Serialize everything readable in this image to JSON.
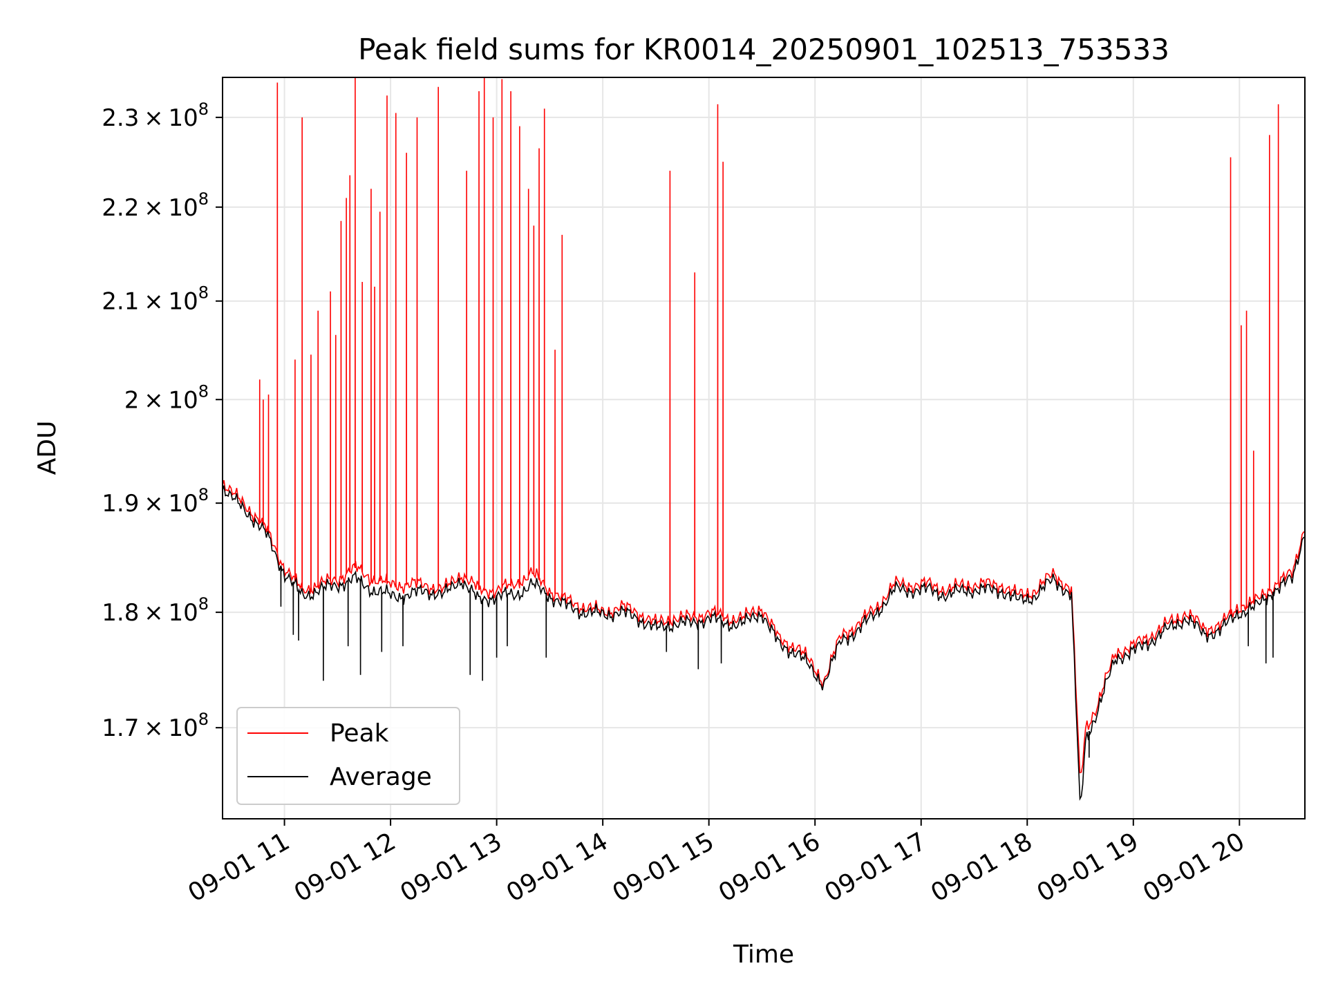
{
  "chart_data": {
    "type": "line",
    "title": "Peak field sums for KR0014_20250901_102513_753533",
    "xlabel": "Time",
    "ylabel": "ADU",
    "x_range": [
      "09-01 10:25",
      "09-01 20:37"
    ],
    "ylim": [
      162500000,
      234600000
    ],
    "y_scale": "log",
    "grid": true,
    "legend_position": "lower-left",
    "x_ticks": [
      {
        "label": "09-01 11",
        "value": "09-01 11:00"
      },
      {
        "label": "09-01 12",
        "value": "09-01 12:00"
      },
      {
        "label": "09-01 13",
        "value": "09-01 13:00"
      },
      {
        "label": "09-01 14",
        "value": "09-01 14:00"
      },
      {
        "label": "09-01 15",
        "value": "09-01 15:00"
      },
      {
        "label": "09-01 16",
        "value": "09-01 16:00"
      },
      {
        "label": "09-01 17",
        "value": "09-01 17:00"
      },
      {
        "label": "09-01 18",
        "value": "09-01 18:00"
      },
      {
        "label": "09-01 19",
        "value": "09-01 19:00"
      },
      {
        "label": "09-01 20",
        "value": "09-01 20:00"
      }
    ],
    "y_ticks": [
      {
        "mantissa": "1.7",
        "exponent": "8",
        "value": 170000000
      },
      {
        "mantissa": "1.8",
        "exponent": "8",
        "value": 180000000
      },
      {
        "mantissa": "1.9",
        "exponent": "8",
        "value": 190000000
      },
      {
        "mantissa": "2",
        "exponent": "8",
        "value": 200000000
      },
      {
        "mantissa": "2.1",
        "exponent": "8",
        "value": 210000000
      },
      {
        "mantissa": "2.2",
        "exponent": "8",
        "value": 220000000
      },
      {
        "mantissa": "2.3",
        "exponent": "8",
        "value": 230000000
      }
    ],
    "series": [
      {
        "name": "Peak",
        "color": "#ff0000",
        "baseline": [
          [
            "09-01 10:25",
            192000000
          ],
          [
            "09-01 10:30",
            191000000
          ],
          [
            "09-01 10:40",
            189500000
          ],
          [
            "09-01 10:50",
            187500000
          ],
          [
            "09-01 11:00",
            184000000
          ],
          [
            "09-01 11:10",
            182000000
          ],
          [
            "09-01 11:20",
            182500000
          ],
          [
            "09-01 11:30",
            183000000
          ],
          [
            "09-01 11:40",
            184000000
          ],
          [
            "09-01 11:50",
            183000000
          ],
          [
            "09-01 12:00",
            182500000
          ],
          [
            "09-01 12:10",
            182500000
          ],
          [
            "09-01 12:20",
            182500000
          ],
          [
            "09-01 12:30",
            182000000
          ],
          [
            "09-01 12:40",
            183500000
          ],
          [
            "09-01 12:50",
            182000000
          ],
          [
            "09-01 13:00",
            182000000
          ],
          [
            "09-01 13:10",
            182500000
          ],
          [
            "09-01 13:20",
            183500000
          ],
          [
            "09-01 13:30",
            182000000
          ],
          [
            "09-01 13:40",
            181000000
          ],
          [
            "09-01 13:50",
            180500000
          ],
          [
            "09-01 14:00",
            180000000
          ],
          [
            "09-01 14:10",
            180500000
          ],
          [
            "09-01 14:20",
            180000000
          ],
          [
            "09-01 14:30",
            179000000
          ],
          [
            "09-01 14:40",
            179500000
          ],
          [
            "09-01 14:50",
            179500000
          ],
          [
            "09-01 15:00",
            180000000
          ],
          [
            "09-01 15:10",
            179500000
          ],
          [
            "09-01 15:20",
            179500000
          ],
          [
            "09-01 15:30",
            180500000
          ],
          [
            "09-01 15:40",
            177500000
          ],
          [
            "09-01 15:50",
            177000000
          ],
          [
            "09-01 16:00",
            175000000
          ],
          [
            "09-01 16:05",
            174000000
          ],
          [
            "09-01 16:15",
            178000000
          ],
          [
            "09-01 16:25",
            179000000
          ],
          [
            "09-01 16:35",
            180500000
          ],
          [
            "09-01 16:45",
            182500000
          ],
          [
            "09-01 16:55",
            182500000
          ],
          [
            "09-01 17:05",
            182500000
          ],
          [
            "09-01 17:15",
            182000000
          ],
          [
            "09-01 17:25",
            182500000
          ],
          [
            "09-01 17:35",
            182500000
          ],
          [
            "09-01 17:45",
            182500000
          ],
          [
            "09-01 17:55",
            181500000
          ],
          [
            "09-01 18:05",
            182000000
          ],
          [
            "09-01 18:15",
            183500000
          ],
          [
            "09-01 18:25",
            182000000
          ],
          [
            "09-01 18:30",
            165000000
          ],
          [
            "09-01 18:33",
            170000000
          ],
          [
            "09-01 18:40",
            172000000
          ],
          [
            "09-01 18:50",
            176500000
          ],
          [
            "09-01 19:00",
            177000000
          ],
          [
            "09-01 19:10",
            178000000
          ],
          [
            "09-01 19:20",
            179000000
          ],
          [
            "09-01 19:30",
            180000000
          ],
          [
            "09-01 19:40",
            178500000
          ],
          [
            "09-01 19:50",
            179000000
          ],
          [
            "09-01 20:00",
            180500000
          ],
          [
            "09-01 20:10",
            181000000
          ],
          [
            "09-01 20:20",
            182500000
          ],
          [
            "09-01 20:30",
            183500000
          ],
          [
            "09-01 20:37",
            188000000
          ]
        ],
        "spikes": [
          [
            "09-01 10:46",
            202000000
          ],
          [
            "09-01 10:48",
            200000000
          ],
          [
            "09-01 10:51",
            200500000
          ],
          [
            "09-01 10:56",
            234000000
          ],
          [
            "09-01 11:06",
            204000000
          ],
          [
            "09-01 11:10",
            230000000
          ],
          [
            "09-01 11:15",
            204500000
          ],
          [
            "09-01 11:19",
            209000000
          ],
          [
            "09-01 11:26",
            211000000
          ],
          [
            "09-01 11:29",
            206500000
          ],
          [
            "09-01 11:32",
            218500000
          ],
          [
            "09-01 11:35",
            221000000
          ],
          [
            "09-01 11:37",
            223500000
          ],
          [
            "09-01 11:40",
            234600000
          ],
          [
            "09-01 11:44",
            212000000
          ],
          [
            "09-01 11:49",
            222000000
          ],
          [
            "09-01 11:51",
            211500000
          ],
          [
            "09-01 11:54",
            219500000
          ],
          [
            "09-01 11:58",
            232500000
          ],
          [
            "09-01 12:03",
            230500000
          ],
          [
            "09-01 12:09",
            226000000
          ],
          [
            "09-01 12:15",
            230000000
          ],
          [
            "09-01 12:27",
            233500000
          ],
          [
            "09-01 12:43",
            224000000
          ],
          [
            "09-01 12:50",
            233000000
          ],
          [
            "09-01 12:53",
            234600000
          ],
          [
            "09-01 12:58",
            230000000
          ],
          [
            "09-01 13:03",
            234400000
          ],
          [
            "09-01 13:08",
            233000000
          ],
          [
            "09-01 13:13",
            229000000
          ],
          [
            "09-01 13:18",
            222000000
          ],
          [
            "09-01 13:21",
            218000000
          ],
          [
            "09-01 13:24",
            226500000
          ],
          [
            "09-01 13:27",
            231000000
          ],
          [
            "09-01 13:33",
            205000000
          ],
          [
            "09-01 13:37",
            217000000
          ],
          [
            "09-01 14:38",
            224000000
          ],
          [
            "09-01 14:52",
            213000000
          ],
          [
            "09-01 15:05",
            231500000
          ],
          [
            "09-01 15:08",
            225000000
          ],
          [
            "09-01 19:55",
            225500000
          ],
          [
            "09-01 20:01",
            207500000
          ],
          [
            "09-01 20:04",
            209000000
          ],
          [
            "09-01 20:08",
            195000000
          ],
          [
            "09-01 20:17",
            228000000
          ],
          [
            "09-01 20:22",
            231500000
          ]
        ]
      },
      {
        "name": "Average",
        "color": "#000000",
        "baseline": [
          [
            "09-01 10:25",
            191500000
          ],
          [
            "09-01 10:30",
            190500000
          ],
          [
            "09-01 10:40",
            189000000
          ],
          [
            "09-01 10:50",
            187000000
          ],
          [
            "09-01 11:00",
            183500000
          ],
          [
            "09-01 11:10",
            181500000
          ],
          [
            "09-01 11:20",
            182000000
          ],
          [
            "09-01 11:30",
            182500000
          ],
          [
            "09-01 11:40",
            183000000
          ],
          [
            "09-01 11:50",
            182000000
          ],
          [
            "09-01 12:00",
            181500000
          ],
          [
            "09-01 12:10",
            181500000
          ],
          [
            "09-01 12:20",
            182000000
          ],
          [
            "09-01 12:30",
            181500000
          ],
          [
            "09-01 12:40",
            183000000
          ],
          [
            "09-01 12:50",
            181000000
          ],
          [
            "09-01 13:00",
            181500000
          ],
          [
            "09-01 13:10",
            181500000
          ],
          [
            "09-01 13:20",
            182500000
          ],
          [
            "09-01 13:30",
            181500000
          ],
          [
            "09-01 13:40",
            180500000
          ],
          [
            "09-01 13:50",
            180000000
          ],
          [
            "09-01 14:00",
            179800000
          ],
          [
            "09-01 14:10",
            180000000
          ],
          [
            "09-01 14:20",
            179500000
          ],
          [
            "09-01 14:30",
            178500000
          ],
          [
            "09-01 14:40",
            179000000
          ],
          [
            "09-01 14:50",
            179000000
          ],
          [
            "09-01 15:00",
            179500000
          ],
          [
            "09-01 15:10",
            179000000
          ],
          [
            "09-01 15:20",
            179000000
          ],
          [
            "09-01 15:30",
            180000000
          ],
          [
            "09-01 15:40",
            177000000
          ],
          [
            "09-01 15:50",
            176500000
          ],
          [
            "09-01 16:00",
            174500000
          ],
          [
            "09-01 16:05",
            173800000
          ],
          [
            "09-01 16:15",
            177500000
          ],
          [
            "09-01 16:25",
            178500000
          ],
          [
            "09-01 16:35",
            180000000
          ],
          [
            "09-01 16:45",
            182000000
          ],
          [
            "09-01 16:55",
            182000000
          ],
          [
            "09-01 17:05",
            182000000
          ],
          [
            "09-01 17:15",
            181500000
          ],
          [
            "09-01 17:25",
            182000000
          ],
          [
            "09-01 17:35",
            182000000
          ],
          [
            "09-01 17:45",
            182000000
          ],
          [
            "09-01 17:55",
            181000000
          ],
          [
            "09-01 18:05",
            181500000
          ],
          [
            "09-01 18:15",
            183000000
          ],
          [
            "09-01 18:25",
            181500000
          ],
          [
            "09-01 18:30",
            162800000
          ],
          [
            "09-01 18:33",
            169000000
          ],
          [
            "09-01 18:40",
            171500000
          ],
          [
            "09-01 18:50",
            176000000
          ],
          [
            "09-01 19:00",
            176500000
          ],
          [
            "09-01 19:10",
            177500000
          ],
          [
            "09-01 19:20",
            178500000
          ],
          [
            "09-01 19:30",
            179500000
          ],
          [
            "09-01 19:40",
            178000000
          ],
          [
            "09-01 19:50",
            178500000
          ],
          [
            "09-01 20:00",
            180000000
          ],
          [
            "09-01 20:10",
            180500000
          ],
          [
            "09-01 20:20",
            182000000
          ],
          [
            "09-01 20:30",
            183000000
          ],
          [
            "09-01 20:37",
            187500000
          ]
        ],
        "dips": [
          [
            "09-01 10:58",
            180500000
          ],
          [
            "09-01 11:05",
            178000000
          ],
          [
            "09-01 11:08",
            177500000
          ],
          [
            "09-01 11:22",
            174000000
          ],
          [
            "09-01 11:36",
            177000000
          ],
          [
            "09-01 11:43",
            174500000
          ],
          [
            "09-01 11:55",
            176500000
          ],
          [
            "09-01 12:07",
            177000000
          ],
          [
            "09-01 12:45",
            174500000
          ],
          [
            "09-01 12:52",
            174000000
          ],
          [
            "09-01 13:00",
            176000000
          ],
          [
            "09-01 13:06",
            177000000
          ],
          [
            "09-01 13:28",
            176000000
          ],
          [
            "09-01 14:36",
            176500000
          ],
          [
            "09-01 14:54",
            175000000
          ],
          [
            "09-01 15:07",
            175500000
          ],
          [
            "09-01 18:35",
            167500000
          ],
          [
            "09-01 20:05",
            177000000
          ],
          [
            "09-01 20:15",
            175500000
          ],
          [
            "09-01 20:19",
            176000000
          ]
        ]
      }
    ]
  }
}
